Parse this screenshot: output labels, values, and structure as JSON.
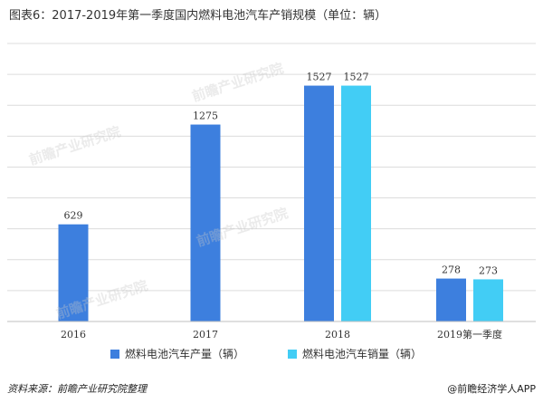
{
  "title": "图表6：2017-2019年第一季度国内燃料电池汽车产销规模（单位：辆）",
  "source": "资料来源：前瞻产业研究院整理",
  "brand": "@前瞻经济学人APP",
  "watermark": "前瞻产业研究院",
  "colors": {
    "production": "#3d7fde",
    "sales": "#42cdf5",
    "grid": "#dcdcdc",
    "axis": "#bfbfbf"
  },
  "chart_data": {
    "type": "bar",
    "categories": [
      "2016",
      "2017",
      "2018",
      "2019第一季度"
    ],
    "series": [
      {
        "name": "燃料电池汽车产量（辆）",
        "values": [
          629,
          1275,
          1527,
          278
        ]
      },
      {
        "name": "燃料电池汽车销量（辆）",
        "values": [
          null,
          null,
          1527,
          273
        ]
      }
    ],
    "ylim": [
      0,
      1800
    ],
    "grid": true,
    "legend": "bottom"
  }
}
